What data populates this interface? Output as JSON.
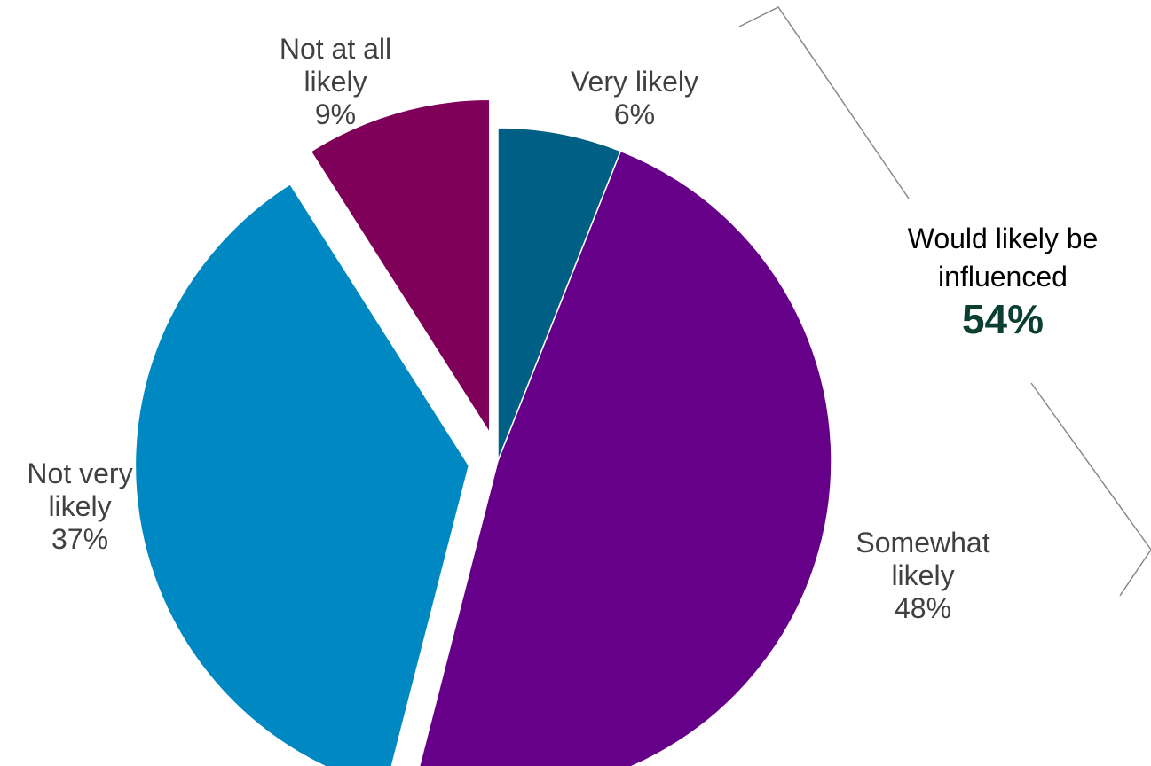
{
  "chart_data": {
    "type": "pie",
    "title": "",
    "slices": [
      {
        "key": "very",
        "label": "Very likely",
        "value": 6,
        "value_label": "6%",
        "color": "#005f85",
        "exploded": false
      },
      {
        "key": "somewhat",
        "label": "Somewhat likely",
        "value": 48,
        "value_label": "48%",
        "color": "#660088",
        "exploded": false
      },
      {
        "key": "notvery",
        "label": "Not very likely",
        "value": 37,
        "value_label": "37%",
        "color": "#0088c2",
        "exploded": true
      },
      {
        "key": "notatall",
        "label": "Not at all likely",
        "value": 9,
        "value_label": "9%",
        "color": "#7e0058",
        "exploded": true
      }
    ],
    "callout": {
      "text": "Would likely be influenced",
      "value": "54%",
      "value_color": "#0b3f32",
      "groups": [
        "Very likely",
        "Somewhat likely"
      ]
    }
  },
  "labels": {
    "very": [
      "Very likely",
      "6%"
    ],
    "somewhat": [
      "Somewhat",
      "likely",
      "48%"
    ],
    "notvery": [
      "Not very",
      "likely",
      "37%"
    ],
    "notatall": [
      "Not at all",
      "likely",
      "9%"
    ]
  }
}
